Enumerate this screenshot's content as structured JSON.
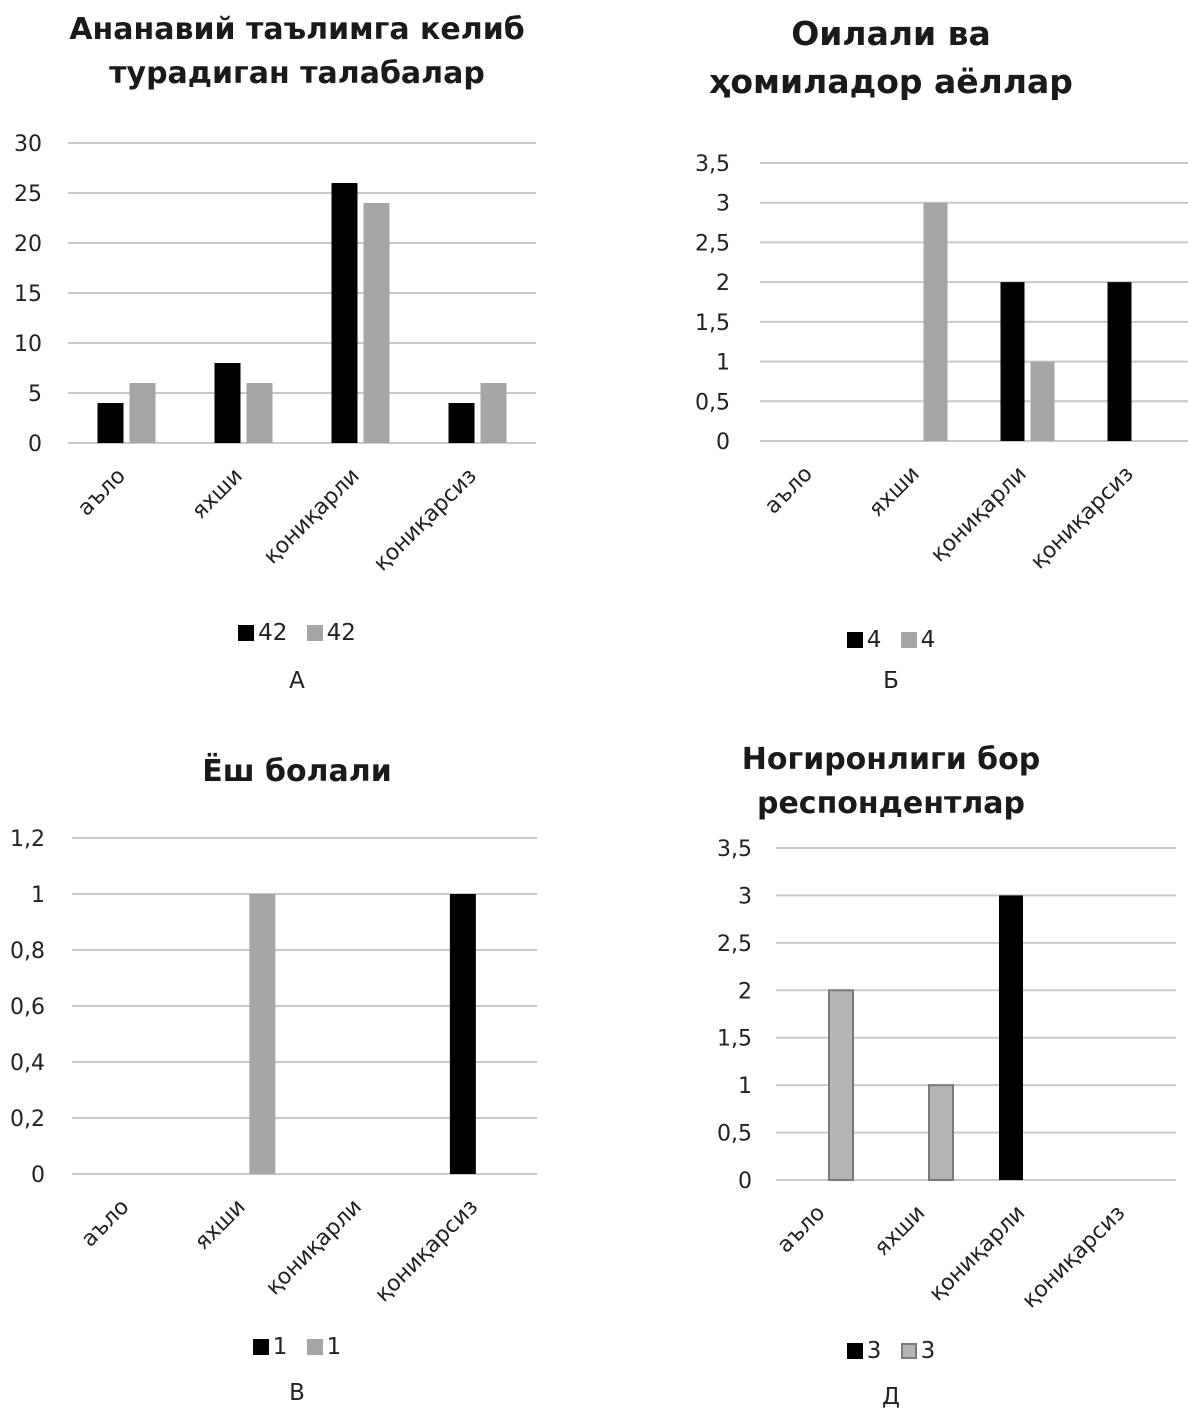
{
  "chart_data": [
    {
      "id": "a",
      "type": "bar",
      "title": "Ананавий таълимга келиб турадиган талабалар",
      "title_lines": [
        "Ананавий таълимга келиб",
        "турадиган талабалар"
      ],
      "categories": [
        "аъло",
        "яхши",
        "қониқарли",
        "қониқарсиз"
      ],
      "series": [
        {
          "name": "42",
          "color": "#000000",
          "values": [
            4,
            8,
            26,
            4
          ]
        },
        {
          "name": "42",
          "color": "#a6a6a6",
          "values": [
            6,
            6,
            24,
            6
          ]
        }
      ],
      "ylim": [
        0,
        30
      ],
      "yticks": [
        0,
        5,
        10,
        15,
        20,
        25,
        30
      ],
      "ytick_labels": [
        "0",
        "5",
        "10",
        "15",
        "20",
        "25",
        "30"
      ],
      "grid": true,
      "legend_position": "bottom",
      "panel_label": "А"
    },
    {
      "id": "b",
      "type": "bar",
      "title": "Оилали ва ҳомиладор аёллар",
      "title_lines": [
        "Оилали ва",
        "ҳомиладор аёллар"
      ],
      "categories": [
        "аъло",
        "яхши",
        "қониқарли",
        "қониқарсиз"
      ],
      "series": [
        {
          "name": "4",
          "color": "#000000",
          "values": [
            0,
            0,
            2,
            2
          ]
        },
        {
          "name": "4",
          "color": "#a6a6a6",
          "values": [
            0,
            3,
            1,
            0
          ]
        }
      ],
      "ylim": [
        0,
        3.5
      ],
      "yticks": [
        0,
        0.5,
        1,
        1.5,
        2,
        2.5,
        3,
        3.5
      ],
      "ytick_labels": [
        "0",
        "0,5",
        "1",
        "1,5",
        "2",
        "2,5",
        "3",
        "3,5"
      ],
      "grid": true,
      "legend_position": "bottom",
      "panel_label": "Б"
    },
    {
      "id": "c",
      "type": "bar",
      "title": "Ёш болали",
      "title_lines": [
        "Ёш болали"
      ],
      "categories": [
        "аъло",
        "яхши",
        "қониқарли",
        "қониқарсиз"
      ],
      "series": [
        {
          "name": "1",
          "color": "#000000",
          "values": [
            0,
            0,
            0,
            1
          ]
        },
        {
          "name": "1",
          "color": "#a6a6a6",
          "values": [
            0,
            1,
            0,
            0
          ]
        }
      ],
      "ylim": [
        0,
        1.2
      ],
      "yticks": [
        0,
        0.2,
        0.4,
        0.6,
        0.8,
        1,
        1.2
      ],
      "ytick_labels": [
        "0",
        "0,2",
        "0,4",
        "0,6",
        "0,8",
        "1",
        "1,2"
      ],
      "grid": true,
      "legend_position": "bottom",
      "panel_label": "В"
    },
    {
      "id": "d",
      "type": "bar",
      "title": "Ногиронлиги бор респондентлар",
      "title_lines": [
        "Ногиронлиги бор",
        "респондентлар"
      ],
      "categories": [
        "аъло",
        "яхши",
        "қониқарли",
        "қониқарсиз"
      ],
      "series": [
        {
          "name": "3",
          "color": "#000000",
          "values": [
            0,
            0,
            3,
            0
          ]
        },
        {
          "name": "3",
          "color": "#a6a6a6",
          "values": [
            2,
            1,
            0,
            0
          ]
        }
      ],
      "ylim": [
        0,
        3.5
      ],
      "yticks": [
        0,
        0.5,
        1,
        1.5,
        2,
        2.5,
        3,
        3.5
      ],
      "ytick_labels": [
        "0",
        "0,5",
        "1",
        "1,5",
        "2",
        "2,5",
        "3",
        "3,5"
      ],
      "grid": true,
      "legend_position": "bottom",
      "panel_label": "Д"
    }
  ]
}
